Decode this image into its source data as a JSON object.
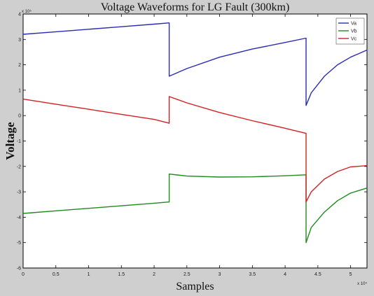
{
  "chart_data": {
    "type": "line",
    "title": "Voltage Waveforms for LG Fault (300km)",
    "xlabel": "Samples",
    "ylabel": "Voltage",
    "x_multiplier": "x 10⁴",
    "y_multiplier": "x 10⁵",
    "xlim": [
      0,
      5.25
    ],
    "ylim": [
      -6,
      4
    ],
    "xticks": [
      "0",
      "0.5",
      "1",
      "1.5",
      "2",
      "2.5",
      "3",
      "3.5",
      "4",
      "4.5",
      "5"
    ],
    "yticks": [
      "-6",
      "-5",
      "-4",
      "-3",
      "-2",
      "-1",
      "0",
      "1",
      "2",
      "3",
      "4"
    ],
    "grid": false,
    "legend_position": "top-right",
    "series": [
      {
        "name": "Va",
        "color": "#2b2bb5",
        "x": [
          0,
          0.5,
          1.0,
          1.5,
          2.0,
          2.23,
          2.23,
          2.5,
          3.0,
          3.5,
          4.0,
          4.32,
          4.32,
          4.4,
          4.6,
          4.8,
          5.0,
          5.25
        ],
        "y": [
          3.2,
          3.3,
          3.4,
          3.5,
          3.6,
          3.65,
          1.55,
          1.85,
          2.3,
          2.62,
          2.88,
          3.05,
          0.4,
          0.9,
          1.55,
          2.0,
          2.3,
          2.58
        ]
      },
      {
        "name": "Vb",
        "color": "#1f8a1f",
        "x": [
          0,
          0.5,
          1.0,
          1.5,
          2.0,
          2.23,
          2.23,
          2.5,
          3.0,
          3.5,
          4.0,
          4.32,
          4.32,
          4.4,
          4.6,
          4.8,
          5.0,
          5.25
        ],
        "y": [
          -3.85,
          -3.75,
          -3.65,
          -3.55,
          -3.45,
          -3.4,
          -2.3,
          -2.38,
          -2.42,
          -2.41,
          -2.37,
          -2.33,
          -5.0,
          -4.4,
          -3.8,
          -3.35,
          -3.05,
          -2.85
        ]
      },
      {
        "name": "Vc",
        "color": "#d42020",
        "x": [
          0,
          0.5,
          1.0,
          1.5,
          2.0,
          2.23,
          2.23,
          2.5,
          3.0,
          3.5,
          4.0,
          4.32,
          4.32,
          4.4,
          4.6,
          4.8,
          5.0,
          5.25
        ],
        "y": [
          0.65,
          0.45,
          0.25,
          0.05,
          -0.15,
          -0.3,
          0.75,
          0.5,
          0.12,
          -0.2,
          -0.5,
          -0.7,
          -3.4,
          -3.0,
          -2.5,
          -2.2,
          -2.02,
          -1.97
        ]
      }
    ]
  }
}
